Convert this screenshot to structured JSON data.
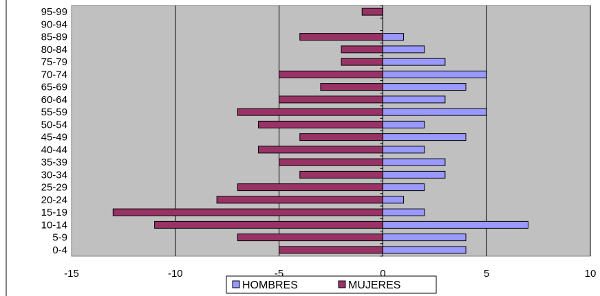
{
  "chart_data": {
    "type": "bar",
    "orientation": "horizontal",
    "categories": [
      "0-4",
      "5-9",
      "10-14",
      "15-19",
      "20-24",
      "25-29",
      "30-34",
      "35-39",
      "40-44",
      "45-49",
      "50-54",
      "55-59",
      "60-64",
      "65-69",
      "70-74",
      "75-79",
      "80-84",
      "85-89",
      "90-94",
      "95-99"
    ],
    "series": [
      {
        "name": "HOMBRES",
        "color": "#9999ff",
        "values": [
          4,
          4,
          7,
          2,
          1,
          2,
          3,
          3,
          2,
          4,
          2,
          5,
          3,
          4,
          5,
          3,
          2,
          1,
          0,
          0
        ]
      },
      {
        "name": "MUJERES",
        "color": "#993366",
        "values": [
          -5,
          -7,
          -11,
          -13,
          -8,
          -7,
          -4,
          -5,
          -6,
          -4,
          -6,
          -7,
          -5,
          -3,
          -5,
          -2,
          -2,
          -4,
          0,
          -1
        ]
      }
    ],
    "xlim": [
      -15,
      10
    ],
    "xticks": [
      "-15",
      "-10",
      "-5",
      "0",
      "5",
      "10"
    ],
    "xtick_values": [
      -15,
      -10,
      -5,
      0,
      5,
      10
    ],
    "plot_background": "#c0c0c0",
    "grid": true,
    "legend_position": "bottom",
    "title": "",
    "xlabel": "",
    "ylabel": ""
  }
}
